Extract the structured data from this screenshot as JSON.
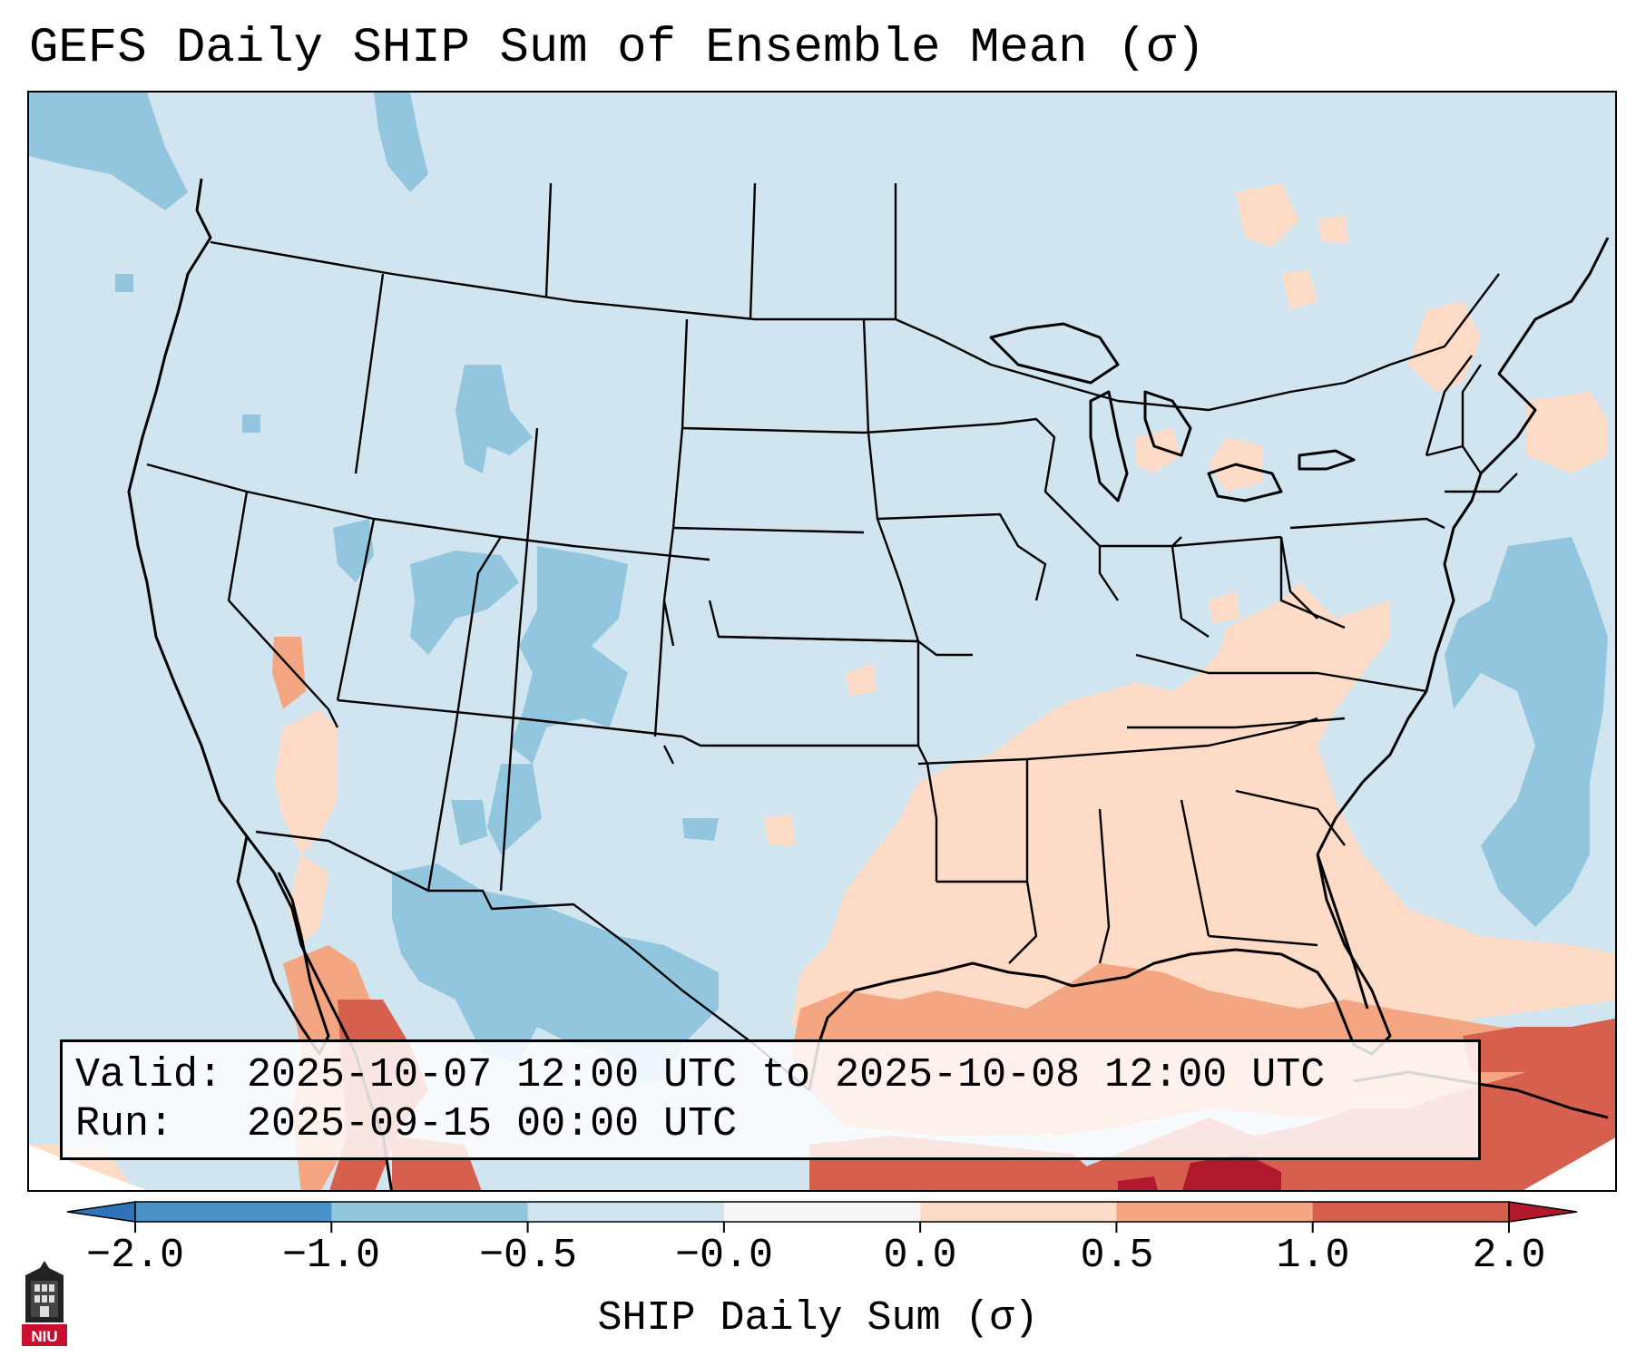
{
  "figure": {
    "title": "GEFS Daily SHIP Sum of Ensemble Mean (σ)",
    "valid_line": "Valid: 2025-10-07 12:00 UTC to 2025-10-08 12:00 UTC",
    "run_line": "Run:   2025-09-15 00:00 UTC",
    "logo_text": "NIU"
  },
  "chart_data": {
    "type": "heatmap",
    "title": "GEFS Daily SHIP Sum of Ensemble Mean (σ)",
    "region": "Contiguous United States, southern Canada, northern Mexico, Gulf of Mexico",
    "colorbar": {
      "label": "SHIP Daily Sum (σ)",
      "tick_labels": [
        "−2.0",
        "−1.0",
        "−0.5",
        "−0.0",
        "0.0",
        "0.5",
        "1.0",
        "2.0"
      ],
      "bins": [
        {
          "range": "< -2.0",
          "color": "#2f73b8"
        },
        {
          "range": "-2.0 to -1.0",
          "color": "#4a93c9"
        },
        {
          "range": "-1.0 to -0.5",
          "color": "#92c5de"
        },
        {
          "range": "-0.5 to -0.0",
          "color": "#d1e5f0"
        },
        {
          "range": "-0.0 to 0.0",
          "color": "#f7f7f7"
        },
        {
          "range": "0.0 to 0.5",
          "color": "#fddbc7"
        },
        {
          "range": "0.5 to 1.0",
          "color": "#f4a582"
        },
        {
          "range": "1.0 to 2.0",
          "color": "#d6604d"
        },
        {
          "range": "> 2.0",
          "color": "#b2182b"
        }
      ],
      "extend": "both"
    },
    "regions": [
      {
        "area": "Most of CONUS and Canada",
        "sigma_range": "-0.5 to 0.0"
      },
      {
        "area": "Great Basin, Colorado, New Mexico, northern Mexico, NE Pacific",
        "sigma_range": "-1.0 to -0.5"
      },
      {
        "area": "Western Atlantic off the East Coast",
        "sigma_range": "-1.0 to -0.5"
      },
      {
        "area": "Gulf Coast states, Tennessee Valley, Southeast",
        "sigma_range": "0.0 to 0.5"
      },
      {
        "area": "Gulf of Mexico",
        "sigma_range": "0.5 to 1.0"
      },
      {
        "area": "Southern Gulf, Caribbean, Gulf of California",
        "sigma_range": "1.0 to 2.0"
      },
      {
        "area": "Yucatan / western Caribbean",
        "sigma_range": "> 2.0"
      }
    ]
  }
}
